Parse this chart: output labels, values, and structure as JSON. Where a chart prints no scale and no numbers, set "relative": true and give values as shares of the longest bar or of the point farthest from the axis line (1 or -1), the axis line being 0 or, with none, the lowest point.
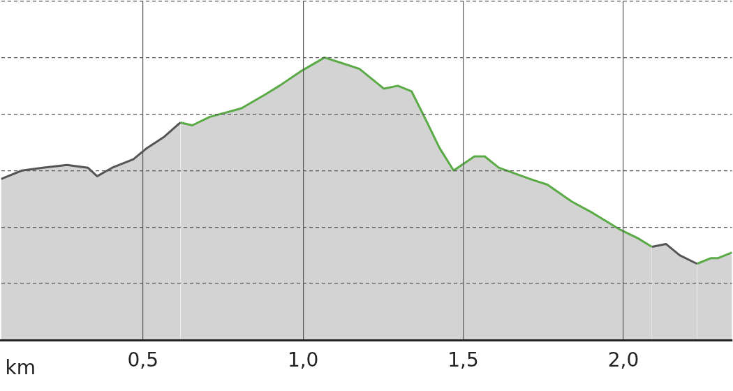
{
  "chart_data": {
    "type": "area",
    "xlabel": "km",
    "relative": true,
    "grid": true,
    "legend": false,
    "marker": "none",
    "xlim": [
      0.057,
      2.339
    ],
    "xticks": [
      {
        "value": 0.5,
        "label": "0,5"
      },
      {
        "value": 1.0,
        "label": "1,0"
      },
      {
        "value": 1.5,
        "label": "1,5"
      },
      {
        "value": 2.0,
        "label": "2,0"
      }
    ],
    "series": [
      {
        "color": "#555555",
        "x": [
          0.057,
          0.122,
          0.187,
          0.263,
          0.328,
          0.357,
          0.404,
          0.47,
          0.513,
          0.567,
          0.617
        ],
        "values": [
          0.57,
          0.6,
          0.61,
          0.62,
          0.61,
          0.58,
          0.61,
          0.64,
          0.68,
          0.72,
          0.77
        ]
      },
      {
        "color": "#5aaa46",
        "x": [
          0.617,
          0.654,
          0.709,
          0.807,
          0.883,
          0.926,
          0.991,
          1.067,
          1.122,
          1.176,
          1.252,
          1.296,
          1.339,
          1.383,
          1.426,
          1.47,
          1.535,
          1.567,
          1.611,
          1.709,
          1.763,
          1.839,
          1.904,
          1.991,
          2.046,
          2.089
        ],
        "values": [
          0.77,
          0.76,
          0.79,
          0.82,
          0.87,
          0.9,
          0.95,
          1,
          0.98,
          0.96,
          0.89,
          0.9,
          0.88,
          0.78,
          0.68,
          0.6,
          0.65,
          0.65,
          0.61,
          0.57,
          0.55,
          0.49,
          0.45,
          0.39,
          0.36,
          0.33
        ]
      },
      {
        "color": "#555555",
        "x": [
          2.089,
          2.133,
          2.176,
          2.23
        ],
        "values": [
          0.33,
          0.34,
          0.3,
          0.27
        ]
      },
      {
        "color": "#5aaa46",
        "x": [
          2.23,
          2.274,
          2.296,
          2.339
        ],
        "values": [
          0.27,
          0.29,
          0.29,
          0.31
        ]
      }
    ]
  }
}
